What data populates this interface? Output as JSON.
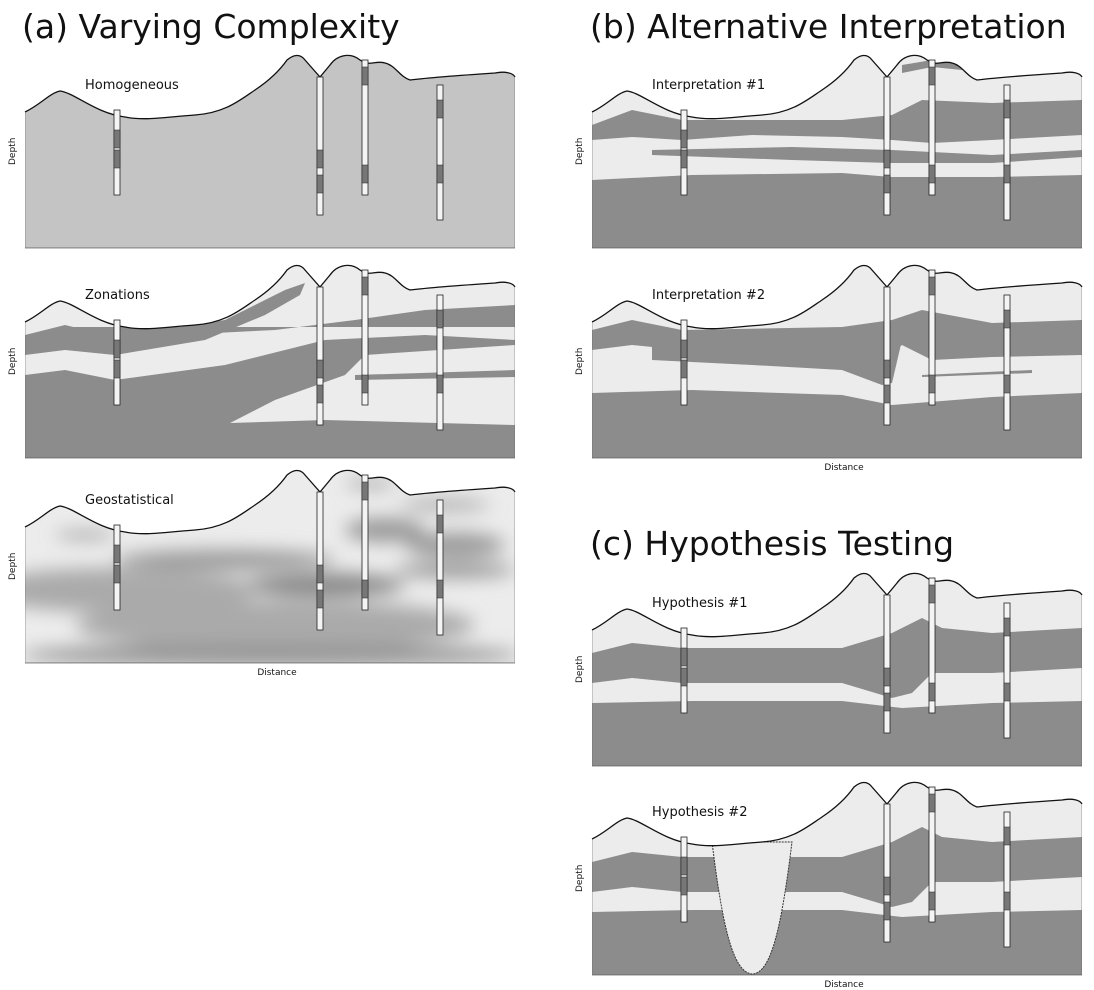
{
  "sections": [
    {
      "title": "(a) Varying Complexity",
      "panels": [
        {
          "label": "Homogeneous",
          "y_label": "Depth"
        },
        {
          "label": "Zonations",
          "y_label": "Depth"
        },
        {
          "label": "Geostatistical",
          "y_label": "Depth",
          "x_label": "Distance"
        }
      ]
    },
    {
      "title": "(b) Alternative Interpretation",
      "panels": [
        {
          "label": "Interpretation #1",
          "y_label": "Depth"
        },
        {
          "label": "Interpretation #2",
          "y_label": "Depth",
          "x_label": "Distance"
        }
      ]
    },
    {
      "title": "(c) Hypothesis Testing",
      "panels": [
        {
          "label": "Hypothesis #1",
          "y_label": "Depth"
        },
        {
          "label": "Hypothesis #2",
          "y_label": "Depth",
          "x_label": "Distance"
        }
      ]
    }
  ]
}
